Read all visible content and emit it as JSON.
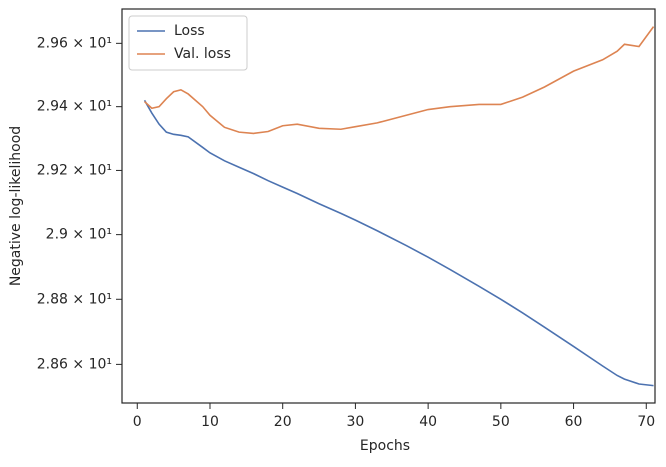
{
  "chart_data": {
    "type": "line",
    "xlabel": "Epochs",
    "ylabel": "Negative log-likelihood",
    "x": [
      1,
      2,
      3,
      4,
      5,
      6,
      7,
      9,
      10,
      12,
      14,
      16,
      18,
      20,
      22,
      25,
      28,
      30,
      33,
      37,
      40,
      43,
      47,
      50,
      53,
      56,
      60,
      64,
      66,
      67,
      69,
      71
    ],
    "series": [
      {
        "name": "Loss",
        "color": "#4c72b0",
        "values": [
          29.42,
          29.38,
          29.345,
          29.32,
          29.313,
          29.31,
          29.305,
          29.272,
          29.255,
          29.23,
          29.21,
          29.19,
          29.168,
          29.148,
          29.128,
          29.096,
          29.066,
          29.045,
          29.012,
          28.966,
          28.93,
          28.892,
          28.84,
          28.8,
          28.758,
          28.714,
          28.655,
          28.595,
          28.566,
          28.555,
          28.54,
          28.535
        ]
      },
      {
        "name": "Val. loss",
        "color": "#dd8452",
        "values": [
          29.416,
          29.395,
          29.4,
          29.425,
          29.447,
          29.453,
          29.44,
          29.4,
          29.373,
          29.335,
          29.32,
          29.316,
          29.322,
          29.34,
          29.345,
          29.332,
          29.329,
          29.337,
          29.349,
          29.373,
          29.391,
          29.4,
          29.407,
          29.407,
          29.43,
          29.462,
          29.512,
          29.548,
          29.575,
          29.597,
          29.59,
          29.653
        ]
      }
    ],
    "xlim": [
      -2.1,
      71.2
    ],
    "xticks": [
      0,
      10,
      20,
      30,
      40,
      50,
      60,
      70
    ],
    "ylim": [
      28.482,
      29.709
    ],
    "ylog": true,
    "yticks": [
      {
        "value": 28.6,
        "label": "2.86 × 10¹"
      },
      {
        "value": 28.8,
        "label": "2.88 × 10¹"
      },
      {
        "value": 29.0,
        "label": "2.9 × 10¹"
      },
      {
        "value": 29.2,
        "label": "2.92 × 10¹"
      },
      {
        "value": 29.4,
        "label": "2.94 × 10¹"
      },
      {
        "value": 29.6,
        "label": "2.96 × 10¹"
      }
    ],
    "legend": "upper left"
  }
}
